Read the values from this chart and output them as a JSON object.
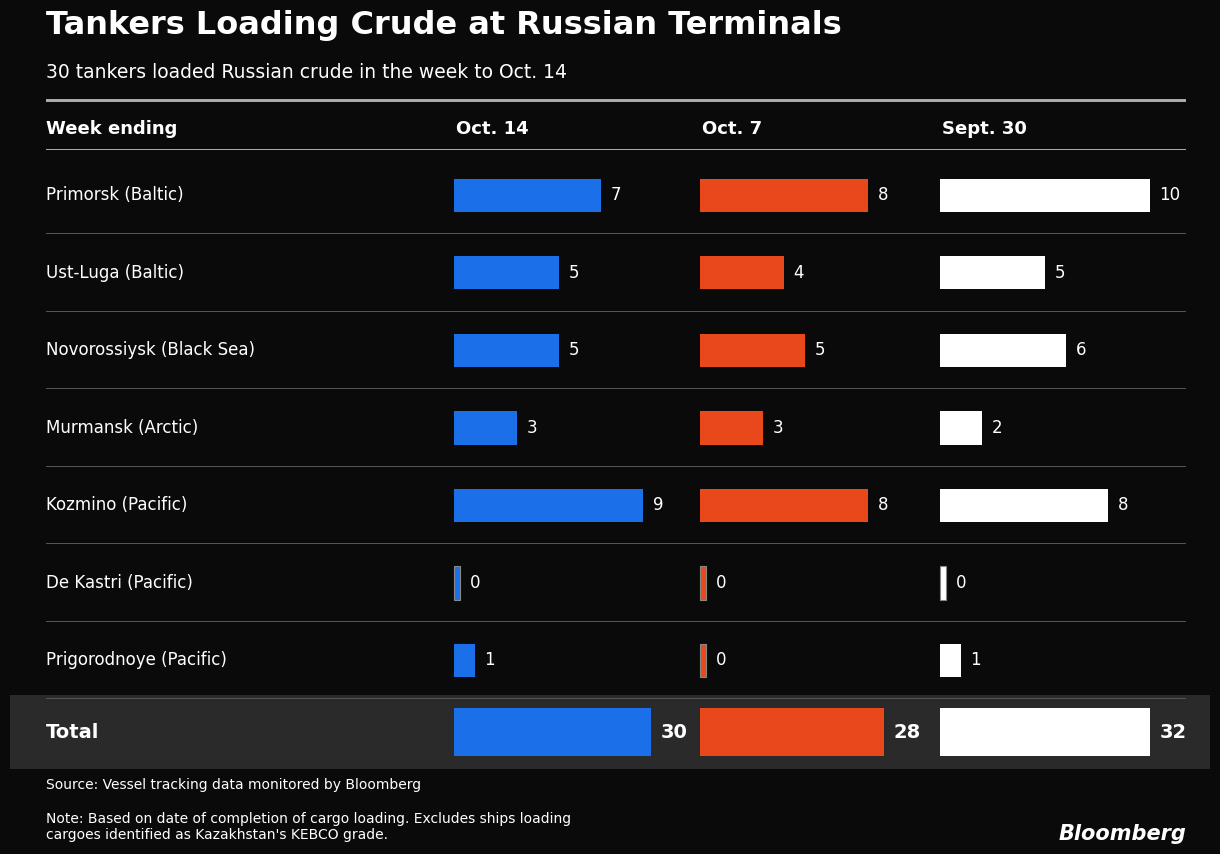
{
  "title": "Tankers Loading Crude at Russian Terminals",
  "subtitle": "30 tankers loaded Russian crude in the week to Oct. 14",
  "bg_color": "#0a0a0a",
  "total_row_bg": "#2a2a2a",
  "col_header": "Week ending",
  "columns": [
    "Oct. 14",
    "Oct. 7",
    "Sept. 30"
  ],
  "col_colors": [
    "#1B6FE8",
    "#E8481A",
    "#FFFFFF"
  ],
  "rows": [
    {
      "label": "Primorsk (Baltic)",
      "values": [
        7,
        8,
        10
      ]
    },
    {
      "label": "Ust-Luga (Baltic)",
      "values": [
        5,
        4,
        5
      ]
    },
    {
      "label": "Novorossiysk (Black Sea)",
      "values": [
        5,
        5,
        6
      ]
    },
    {
      "label": "Murmansk (Arctic)",
      "values": [
        3,
        3,
        2
      ]
    },
    {
      "label": "Kozmino (Pacific)",
      "values": [
        9,
        8,
        8
      ]
    },
    {
      "label": "De Kastri (Pacific)",
      "values": [
        0,
        0,
        0
      ]
    },
    {
      "label": "Prigorodnoye (Pacific)",
      "values": [
        1,
        0,
        1
      ]
    }
  ],
  "totals": [
    30,
    28,
    32
  ],
  "max_bar_value": 10,
  "total_max_bar_value": 32,
  "source_text": "Source: Vessel tracking data monitored by Bloomberg",
  "note_text": "Note: Based on date of completion of cargo loading. Excludes ships loading\ncargoes identified as Kazakhstan's KEBCO grade.",
  "bloomberg_text": "Bloomberg",
  "text_color": "#FFFFFF",
  "sep_color": "#555555",
  "header_sep_color": "#AAAAAA"
}
